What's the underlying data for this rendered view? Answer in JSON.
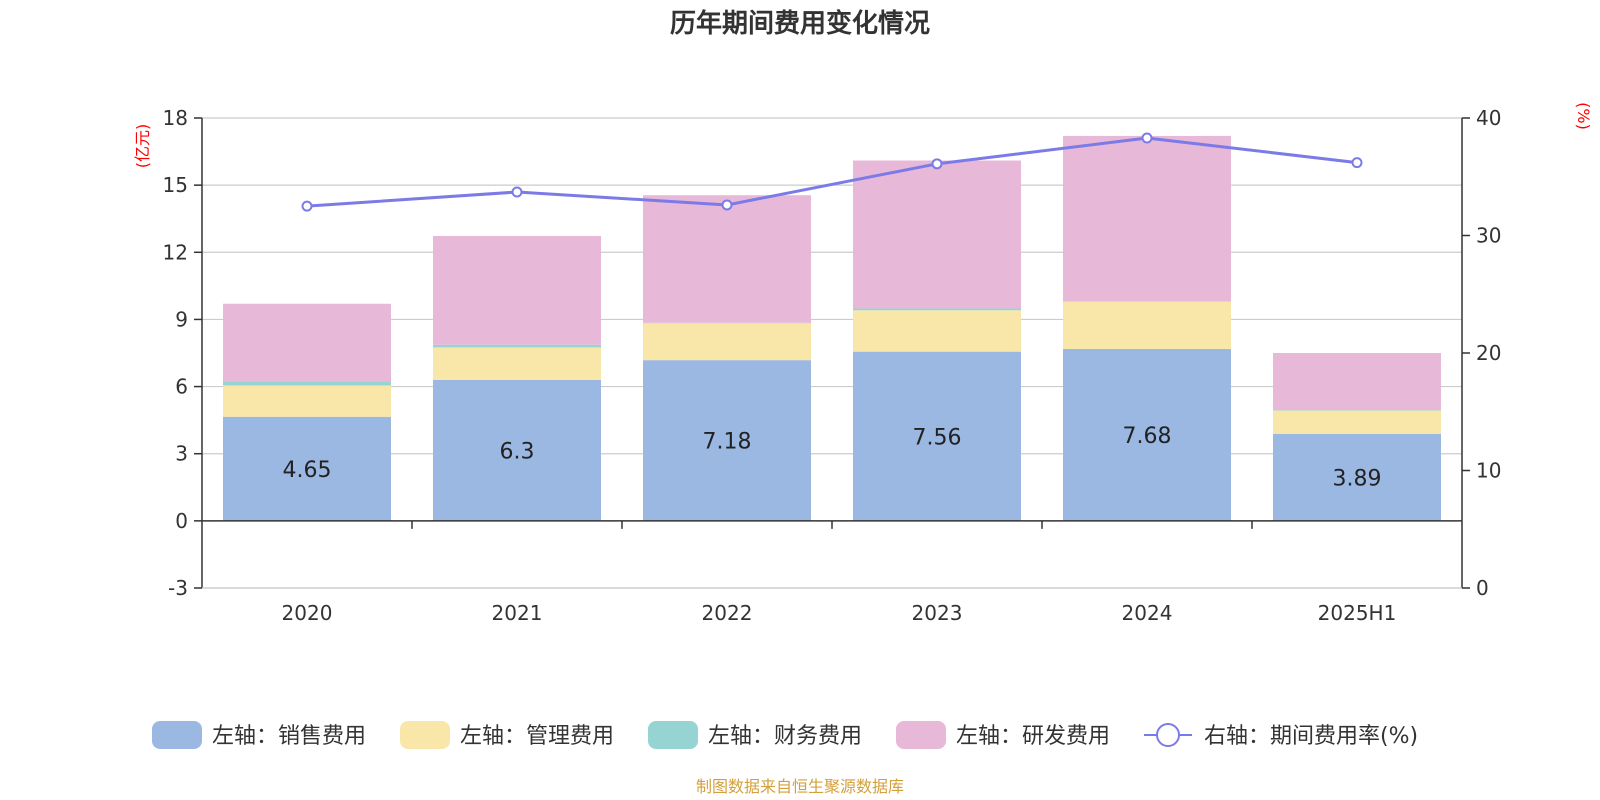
{
  "chart_data": {
    "type": "bar",
    "title": "历年期间费用变化情况",
    "categories": [
      "2020",
      "2021",
      "2022",
      "2023",
      "2024",
      "2025H1"
    ],
    "left_axis": {
      "unit": "(亿元)",
      "min": -3,
      "max": 18,
      "ticks": [
        "-3",
        "0",
        "3",
        "6",
        "9",
        "12",
        "15",
        "18"
      ]
    },
    "right_axis": {
      "unit": "(%)",
      "min": 0,
      "max": 40,
      "ticks": [
        "0",
        "10",
        "20",
        "30",
        "40"
      ]
    },
    "series": [
      {
        "name": "左轴：销售费用",
        "axis": "left",
        "stack": true,
        "color": "#9bb8e3",
        "values": [
          4.65,
          6.3,
          7.18,
          7.56,
          7.68,
          3.89
        ],
        "labels": [
          "4.65",
          "6.3",
          "7.18",
          "7.56",
          "7.68",
          "3.89"
        ]
      },
      {
        "name": "左轴：管理费用",
        "axis": "left",
        "stack": true,
        "color": "#f8e7a9",
        "values": [
          1.4,
          1.45,
          1.65,
          1.85,
          2.12,
          1.04
        ]
      },
      {
        "name": "左轴：财务费用",
        "axis": "left",
        "stack": true,
        "color": "#96d4d4",
        "values": [
          0.18,
          0.12,
          0.02,
          0.08,
          0.02,
          0.02
        ]
      },
      {
        "name": "左轴：研发费用",
        "axis": "left",
        "stack": true,
        "color": "#e8b8d8",
        "values": [
          3.47,
          4.86,
          5.7,
          6.61,
          7.38,
          2.55
        ]
      },
      {
        "name": "右轴：期间费用率(%)",
        "axis": "right",
        "type": "line",
        "color": "#7b7be8",
        "values": [
          32.5,
          33.7,
          32.6,
          36.1,
          38.3,
          36.2
        ]
      }
    ],
    "grid": true,
    "legend_position": "bottom"
  },
  "source": "制图数据来自恒生聚源数据库"
}
